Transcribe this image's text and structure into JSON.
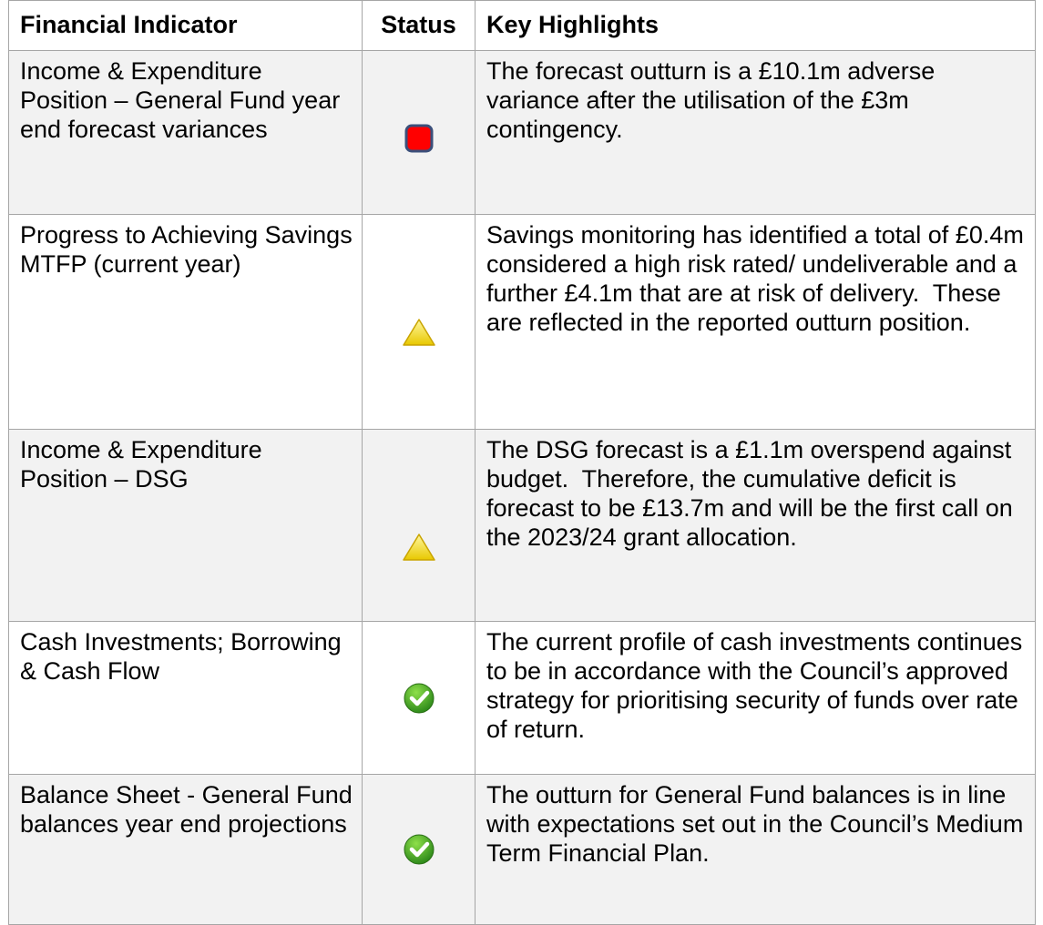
{
  "table": {
    "header": [
      "Financial Indicator",
      "Status",
      "Key Highlights"
    ],
    "rows": [
      [
        "Income & Expenditure Position – General Fund year end forecast variances",
        "The forecast outturn is a £10.1m adverse variance after the utilisation of the £3m contingency."
      ],
      [
        "Progress to Achieving Savings MTFP (current year)",
        "Savings monitoring has identified a total of £0.4m considered a high risk rated/ undeliverable and a further £4.1m that are at risk of delivery.  These are reflected in the reported outturn position."
      ],
      [
        "Income & Expenditure Position – DSG",
        "The DSG forecast is a £1.1m overspend against budget.  Therefore, the cumulative deficit is forecast to be £13.7m and will be the first call on the 2023/24 grant allocation."
      ],
      [
        "Cash Investments; Borrowing & Cash Flow",
        "The current profile of cash investments continues to be in accordance with the Council’s approved strategy for prioritising security of funds over rate of return."
      ],
      [
        "Balance Sheet - General Fund balances year end projections",
        "The outturn for General Fund balances is in line with expectations set out in the Council’s Medium Term Financial Plan."
      ]
    ]
  }
}
